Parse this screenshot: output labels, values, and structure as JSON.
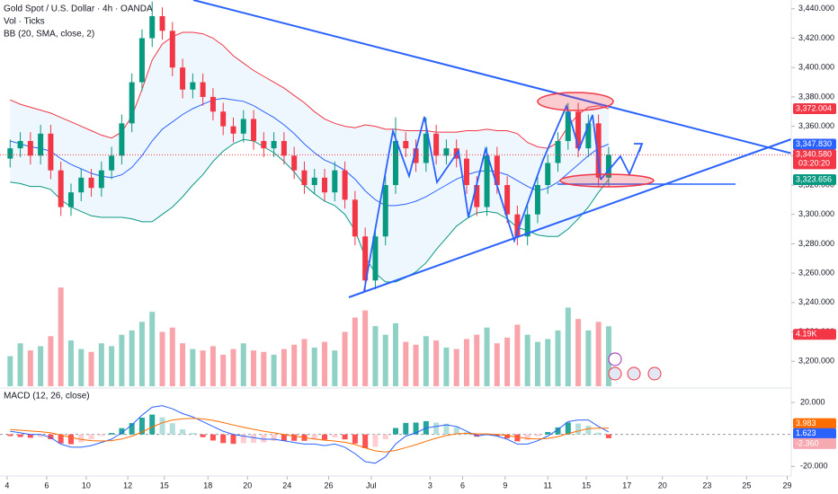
{
  "chart_data": {
    "type": "candlestick",
    "title": "Gold Spot / U.S. Dollar · 4h · OANDA",
    "up_color": "#089981",
    "down_color": "#f23645",
    "open": [
      3338,
      3345,
      3350,
      3340,
      3355,
      3330,
      3305,
      3315,
      3325,
      3318,
      3330,
      3340,
      3362,
      3390,
      3420,
      3435,
      3425,
      3400,
      3385,
      3390,
      3380,
      3370,
      3360,
      3355,
      3365,
      3350,
      3345,
      3350,
      3340,
      3330,
      3320,
      3325,
      3315,
      3330,
      3310,
      3285,
      3255,
      3285,
      3320,
      3350,
      3345,
      3335,
      3355,
      3340,
      3345,
      3338,
      3320,
      3305,
      3340,
      3320,
      3300,
      3285,
      3300,
      3320,
      3335,
      3350,
      3370,
      3345,
      3362,
      3325
    ],
    "high": [
      3351,
      3356,
      3356,
      3361,
      3361,
      3336,
      3321,
      3331,
      3331,
      3336,
      3346,
      3368,
      3396,
      3426,
      3445,
      3441,
      3431,
      3406,
      3396,
      3396,
      3386,
      3376,
      3366,
      3371,
      3371,
      3356,
      3356,
      3356,
      3346,
      3336,
      3331,
      3331,
      3336,
      3336,
      3316,
      3291,
      3291,
      3326,
      3366,
      3356,
      3351,
      3366,
      3361,
      3351,
      3351,
      3344,
      3326,
      3346,
      3346,
      3326,
      3306,
      3306,
      3326,
      3341,
      3356,
      3376,
      3376,
      3368,
      3368,
      3346
    ],
    "low": [
      3332,
      3339,
      3334,
      3334,
      3324,
      3299,
      3299,
      3309,
      3312,
      3312,
      3324,
      3334,
      3356,
      3384,
      3414,
      3419,
      3394,
      3379,
      3379,
      3374,
      3364,
      3354,
      3349,
      3349,
      3344,
      3339,
      3339,
      3334,
      3324,
      3314,
      3314,
      3309,
      3309,
      3304,
      3279,
      3247,
      3249,
      3279,
      3314,
      3339,
      3329,
      3329,
      3334,
      3334,
      3332,
      3314,
      3299,
      3299,
      3314,
      3294,
      3279,
      3279,
      3294,
      3314,
      3329,
      3344,
      3339,
      3339,
      3319,
      3319
    ],
    "close": [
      3345,
      3350,
      3340,
      3355,
      3330,
      3305,
      3315,
      3325,
      3318,
      3330,
      3340,
      3362,
      3390,
      3420,
      3435,
      3425,
      3400,
      3385,
      3390,
      3380,
      3370,
      3360,
      3355,
      3365,
      3350,
      3345,
      3350,
      3340,
      3330,
      3320,
      3325,
      3315,
      3330,
      3310,
      3285,
      3255,
      3285,
      3320,
      3350,
      3345,
      3335,
      3355,
      3340,
      3345,
      3338,
      3320,
      3305,
      3340,
      3320,
      3300,
      3285,
      3300,
      3320,
      3335,
      3350,
      3370,
      3345,
      3362,
      3325,
      3340.58
    ],
    "xlim": [
      -1,
      77
    ],
    "xticks": [
      {
        "value": -0.3,
        "label": "4"
      },
      {
        "value": 3.6,
        "label": "6"
      },
      {
        "value": 7.5,
        "label": "10"
      },
      {
        "value": 11.6,
        "label": "12"
      },
      {
        "value": 15.2,
        "label": "15"
      },
      {
        "value": 19.5,
        "label": "18"
      },
      {
        "value": 23.4,
        "label": "20"
      },
      {
        "value": 27.3,
        "label": "24"
      },
      {
        "value": 31.4,
        "label": "26"
      },
      {
        "value": 35.6,
        "label": "Jul"
      },
      {
        "value": 41.4,
        "label": "3"
      },
      {
        "value": 44.6,
        "label": "6"
      },
      {
        "value": 48.8,
        "label": "9"
      },
      {
        "value": 53,
        "label": "11"
      },
      {
        "value": 56.8,
        "label": "15"
      },
      {
        "value": 60.8,
        "label": "17"
      },
      {
        "value": 64.3,
        "label": "20"
      },
      {
        "value": 68.7,
        "label": "23"
      },
      {
        "value": 72.6,
        "label": "25"
      },
      {
        "value": 76.6,
        "label": "29"
      }
    ],
    "ylim": [
      3183,
      3446
    ],
    "yticks": [
      {
        "value": 3200,
        "label": "3,200.000"
      },
      {
        "value": 3220,
        "label": "3,220.000"
      },
      {
        "value": 3240,
        "label": "3,240.000"
      },
      {
        "value": 3260,
        "label": "3,260.000"
      },
      {
        "value": 3280,
        "label": "3,280.000"
      },
      {
        "value": 3300,
        "label": "3,300.000"
      },
      {
        "value": 3320,
        "label": "3,320.000"
      },
      {
        "value": 3340,
        "label": "3,340.000"
      },
      {
        "value": 3360,
        "label": "3,360.000"
      },
      {
        "value": 3380,
        "label": "3,380.000"
      },
      {
        "value": 3400,
        "label": "3,400.000"
      },
      {
        "value": 3420,
        "label": "3,420.000"
      },
      {
        "value": 3440,
        "label": "3,440.000"
      }
    ],
    "grid": false,
    "bollinger": {
      "name": "BB (20, SMA, close, 2)",
      "upper": [
        3378,
        3375,
        3373,
        3371,
        3369,
        3366,
        3363,
        3360,
        3357,
        3354,
        3352,
        3356,
        3367,
        3385,
        3405,
        3416,
        3421,
        3424,
        3424,
        3423,
        3420,
        3415,
        3408,
        3403,
        3398,
        3394,
        3390,
        3386,
        3381,
        3376,
        3370,
        3365,
        3362,
        3360,
        3359,
        3361,
        3360,
        3358,
        3358,
        3357,
        3357,
        3357,
        3356,
        3356,
        3356,
        3357,
        3357,
        3358,
        3357,
        3357,
        3355,
        3349,
        3346,
        3345,
        3349,
        3360,
        3368,
        3373,
        3374,
        3372.004
      ],
      "basis": [
        3350,
        3348,
        3346,
        3345,
        3343,
        3338,
        3334,
        3331,
        3328,
        3326,
        3325,
        3327,
        3332,
        3340,
        3350,
        3358,
        3363,
        3368,
        3372,
        3375,
        3378,
        3379,
        3378,
        3377,
        3374,
        3370,
        3366,
        3361,
        3355,
        3348,
        3342,
        3337,
        3334,
        3330,
        3324,
        3316,
        3310,
        3306,
        3306,
        3307,
        3309,
        3312,
        3316,
        3320,
        3324,
        3327,
        3329,
        3330,
        3329,
        3327,
        3323,
        3319,
        3316,
        3318,
        3322,
        3328,
        3334,
        3340,
        3345,
        3347.83
      ],
      "lower": [
        3322,
        3321,
        3319,
        3319,
        3317,
        3310,
        3305,
        3302,
        3299,
        3298,
        3298,
        3298,
        3297,
        3295,
        3295,
        3300,
        3305,
        3312,
        3320,
        3327,
        3336,
        3343,
        3348,
        3351,
        3350,
        3346,
        3342,
        3336,
        3329,
        3320,
        3314,
        3309,
        3306,
        3300,
        3289,
        3271,
        3260,
        3254,
        3254,
        3257,
        3261,
        3267,
        3276,
        3284,
        3292,
        3297,
        3301,
        3302,
        3301,
        3297,
        3291,
        3289,
        3286,
        3285,
        3285,
        3290,
        3297,
        3305,
        3315,
        3323.656
      ],
      "upper_color": "#f23645",
      "basis_color": "#2962ff",
      "lower_color": "#089981"
    },
    "volume": {
      "name": "Vol · Ticks",
      "ylim": [
        0,
        27000
      ],
      "values": [
        2100,
        3000,
        2500,
        2800,
        3500,
        6900,
        3200,
        2600,
        2400,
        3000,
        2800,
        3600,
        3900,
        4500,
        5200,
        3800,
        4100,
        3000,
        2600,
        2500,
        2800,
        2200,
        2600,
        3000,
        2500,
        2400,
        2200,
        2600,
        2900,
        3300,
        2700,
        3100,
        2500,
        3800,
        4800,
        5300,
        4200,
        3600,
        4400,
        3100,
        2900,
        3500,
        3200,
        2700,
        2600,
        3300,
        3600,
        4100,
        3000,
        3400,
        4300,
        3600,
        3100,
        3300,
        3900,
        5500,
        4700,
        3900,
        4500,
        4190
      ],
      "tag": {
        "value": 4190,
        "label": "4.19K"
      }
    },
    "price_tags": [
      {
        "value": 3372.004,
        "label": "3,372.004",
        "color": "#f23645"
      },
      {
        "value": 3347.83,
        "label": "3,347.830",
        "color": "#2962ff"
      },
      {
        "value": 3340.58,
        "label": "3,340.580",
        "color": "#f23645"
      },
      {
        "value": 3323.656,
        "label": "3,323.656",
        "color": "#089981"
      }
    ],
    "countdown": "03:20:20",
    "macd": {
      "name": "MACD (12, 26, close)",
      "ylim": [
        -26,
        29
      ],
      "yticks": [
        {
          "value": 20,
          "label": "20.000"
        },
        {
          "value": -20,
          "label": "-20.000"
        }
      ],
      "macd": [
        2,
        1,
        0,
        0,
        -2,
        -6,
        -8,
        -8,
        -7,
        -5,
        -3,
        1,
        6,
        12,
        17,
        18,
        16,
        13,
        11,
        8,
        5,
        2,
        0,
        -1,
        -2,
        -3,
        -3,
        -4,
        -5,
        -6,
        -6,
        -7,
        -6,
        -8,
        -12,
        -17,
        -18,
        -14,
        -6,
        -1,
        1,
        4,
        5,
        6,
        5,
        2,
        -1,
        0,
        -1,
        -3,
        -6,
        -6,
        -4,
        -1,
        3,
        8,
        9,
        9,
        5,
        1.623
      ],
      "signal": [
        3,
        2.6,
        2.1,
        1.7,
        1,
        -0.4,
        -1.9,
        -3.1,
        -3.9,
        -4.1,
        -3.9,
        -2.9,
        -1.1,
        1.5,
        4.6,
        7.3,
        9,
        9.8,
        10.1,
        9.7,
        8.8,
        7.4,
        5.9,
        4.5,
        3.2,
        2,
        1,
        0,
        -1,
        -2,
        -2.8,
        -3.6,
        -4.1,
        -4.9,
        -6.3,
        -8.4,
        -10.3,
        -11,
        -10,
        -8.2,
        -6.4,
        -4.3,
        -2.4,
        -0.7,
        0.4,
        0.7,
        0.4,
        0.3,
        0,
        -0.6,
        -1.7,
        -2.6,
        -2.9,
        -2.5,
        -1.4,
        0.5,
        2.2,
        3.6,
        3.9,
        3.983
      ],
      "histogram": [
        -1,
        -1.6,
        -2.1,
        -1.7,
        -3,
        -5.6,
        -6.1,
        -4.9,
        -3.1,
        -0.9,
        0.9,
        3.9,
        7.1,
        10.5,
        12.4,
        10.7,
        7,
        3.2,
        0.9,
        -1.7,
        -3.8,
        -5.4,
        -5.9,
        -5.5,
        -5.2,
        -5,
        -4,
        -4,
        -4,
        -4,
        -3.2,
        -3.4,
        -1.9,
        -3.1,
        -5.7,
        -8.6,
        -7.7,
        -3,
        4,
        7.2,
        7.4,
        8.3,
        7.4,
        6.7,
        4.6,
        1.3,
        -1.4,
        -0.3,
        -1,
        -2.4,
        -4.3,
        -3.4,
        -1.1,
        1.5,
        4.4,
        7.5,
        6.8,
        5.4,
        1.1,
        -2.36
      ],
      "macd_color": "#2962ff",
      "signal_color": "#ff6d00",
      "tags": [
        {
          "value": 3.983,
          "label": "3.983",
          "color": "#ff6d00"
        },
        {
          "value": 1.623,
          "label": "1.623",
          "color": "#2962ff"
        },
        {
          "value": -2.36,
          "label": "-2.360",
          "color": "#f7a9b2"
        }
      ]
    }
  }
}
